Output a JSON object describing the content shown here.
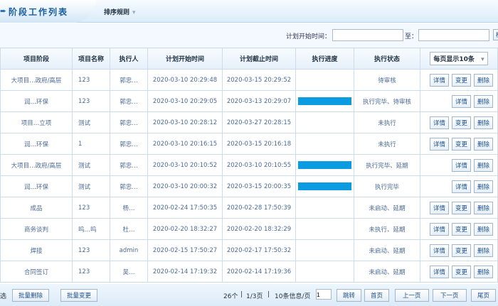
{
  "header": {
    "title": "阶段工作列表",
    "sort_menu": "排序规则"
  },
  "filter": {
    "start_label": "计划开始时间：",
    "to_label": "至：",
    "start_value": "",
    "end_value": "",
    "search_button": "检"
  },
  "table": {
    "columns": [
      "项目阶段",
      "项目名称",
      "执行人",
      "计划开始时间",
      "计划截止时间",
      "执行进度",
      "执行状态"
    ],
    "page_size_select": "每页显示10条",
    "rows": [
      {
        "stage": "大项目…政府/高层",
        "name": "123",
        "owner": "郭忠…",
        "start": "2020-03-10 20:29:48",
        "end": "2020-03-15 20:29:52",
        "progress": null,
        "status": "待审核",
        "actions": [
          "详情",
          "变更",
          "删除"
        ]
      },
      {
        "stage": "润…环保",
        "name": "123",
        "owner": "郭忠…",
        "start": "2020-03-10 20:29:05",
        "end": "2020-03-13 20:29:07",
        "progress": 100,
        "status": "执行完毕、待审核",
        "actions": [
          "详情",
          "删除"
        ]
      },
      {
        "stage": "项目…立项",
        "name": "测试",
        "owner": "郭忠…",
        "start": "2020-03-10 20:28:12",
        "end": "2020-03-27 20:28:15",
        "progress": null,
        "status": "未执行",
        "actions": [
          "详情",
          "变更",
          "删除"
        ]
      },
      {
        "stage": "润…环保",
        "name": "1",
        "owner": "郭忠…",
        "start": "2020-03-10 20:16:15",
        "end": "2020-03-15 20:16:18",
        "progress": null,
        "status": "未执行",
        "actions": [
          "详情",
          "变更",
          "删除"
        ]
      },
      {
        "stage": "大项目…政府/高层",
        "name": "测试",
        "owner": "郭忠…",
        "start": "2020-03-10 20:10:52",
        "end": "2020-03-10 20:10:55",
        "progress": 100,
        "status": "执行完毕、延期",
        "actions": [
          "详情",
          "删除"
        ]
      },
      {
        "stage": "润…环保",
        "name": "测试",
        "owner": "郭忠…",
        "start": "2020-03-10 20:00:32",
        "end": "2020-03-15 20:00:35",
        "progress": 100,
        "status": "执行完毕",
        "actions": [
          "详情",
          "删除"
        ]
      },
      {
        "stage": "成品",
        "name": "123",
        "owner": "杨…",
        "start": "2020-02-24 17:50:35",
        "end": "2020-02-28 17:50:39",
        "progress": null,
        "status": "未启动、延期",
        "actions": [
          "详情",
          "变更",
          "删除"
        ]
      },
      {
        "stage": "商务谈判",
        "name": "呜…呜",
        "owner": "杜…",
        "start": "2020-02-20 18:32:27",
        "end": "2020-02-20 18:32:29",
        "progress": null,
        "status": "未执行、延期",
        "actions": [
          "详情",
          "变更",
          "删除"
        ]
      },
      {
        "stage": "焊接",
        "name": "123",
        "owner": "admin",
        "start": "2020-02-15 17:50:27",
        "end": "2020-02-17 17:50:32",
        "progress": null,
        "status": "未启动、延期",
        "actions": [
          "详情",
          "变更",
          "删除"
        ]
      },
      {
        "stage": "合同签订",
        "name": "123",
        "owner": "吴…",
        "start": "2020-02-14 17:19:32",
        "end": "2020-02-14 17:19:36",
        "progress": null,
        "status": "未启动、延期",
        "actions": [
          "详情",
          "变更",
          "删除"
        ]
      }
    ]
  },
  "footer": {
    "select_label": "选",
    "batch_delete": "批量删除",
    "batch_change": "批量变更",
    "total": "26个",
    "pages": "1/3页",
    "per_page": "10条信息/页",
    "page_input": "1",
    "jump": "跳转",
    "first": "首页",
    "prev": "上一页",
    "next": "下一页",
    "last": "尾页"
  },
  "colors": {
    "progress": "#0b9be0",
    "accent": "#1a5ea0"
  }
}
